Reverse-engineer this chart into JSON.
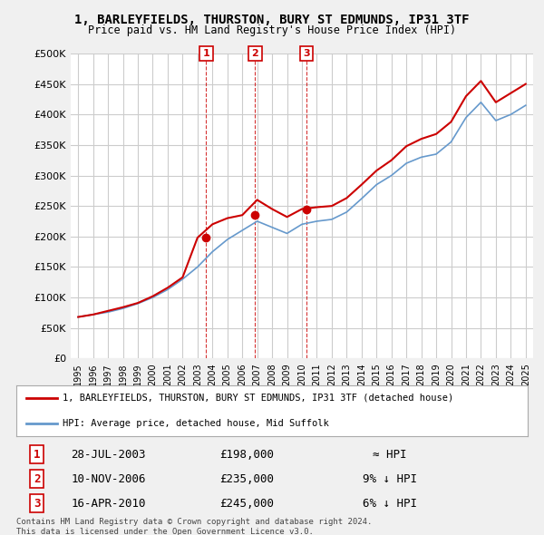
{
  "title": "1, BARLEYFIELDS, THURSTON, BURY ST EDMUNDS, IP31 3TF",
  "subtitle": "Price paid vs. HM Land Registry's House Price Index (HPI)",
  "ylabel": "",
  "ylim": [
    0,
    500000
  ],
  "yticks": [
    0,
    50000,
    100000,
    150000,
    200000,
    250000,
    300000,
    350000,
    400000,
    450000,
    500000
  ],
  "ytick_labels": [
    "£0",
    "£50K",
    "£100K",
    "£150K",
    "£200K",
    "£250K",
    "£300K",
    "£350K",
    "£400K",
    "£450K",
    "£500K"
  ],
  "bg_color": "#f0f0f0",
  "plot_bg_color": "#ffffff",
  "grid_color": "#cccccc",
  "red_line_color": "#cc0000",
  "blue_line_color": "#6699cc",
  "sale_marker_color": "#cc0000",
  "sale_marker_edge": "#cc0000",
  "purchase_dates": [
    "2003-07-28",
    "2006-11-10",
    "2010-04-16"
  ],
  "purchase_prices": [
    198000,
    235000,
    245000
  ],
  "purchase_labels": [
    "1",
    "2",
    "3"
  ],
  "legend_line1": "1, BARLEYFIELDS, THURSTON, BURY ST EDMUNDS, IP31 3TF (detached house)",
  "legend_line2": "HPI: Average price, detached house, Mid Suffolk",
  "table_data": [
    [
      "1",
      "28-JUL-2003",
      "£198,000",
      "≈ HPI"
    ],
    [
      "2",
      "10-NOV-2006",
      "£235,000",
      "9% ↓ HPI"
    ],
    [
      "3",
      "16-APR-2010",
      "£245,000",
      "6% ↓ HPI"
    ]
  ],
  "footnote": "Contains HM Land Registry data © Crown copyright and database right 2024.\nThis data is licensed under the Open Government Licence v3.0.",
  "hpi_years": [
    1995,
    1996,
    1997,
    1998,
    1999,
    2000,
    2001,
    2002,
    2003,
    2004,
    2005,
    2006,
    2007,
    2008,
    2009,
    2010,
    2011,
    2012,
    2013,
    2014,
    2015,
    2016,
    2017,
    2018,
    2019,
    2020,
    2021,
    2022,
    2023,
    2024,
    2025
  ],
  "hpi_values": [
    68000,
    72000,
    76000,
    82000,
    90000,
    100000,
    113000,
    130000,
    150000,
    175000,
    195000,
    210000,
    225000,
    215000,
    205000,
    220000,
    225000,
    228000,
    240000,
    262000,
    285000,
    300000,
    320000,
    330000,
    335000,
    355000,
    395000,
    420000,
    390000,
    400000,
    415000
  ],
  "red_years": [
    1995,
    1996,
    1997,
    1998,
    1999,
    2000,
    2001,
    2002,
    2003,
    2004,
    2005,
    2006,
    2007,
    2008,
    2009,
    2010,
    2011,
    2012,
    2013,
    2014,
    2015,
    2016,
    2017,
    2018,
    2019,
    2020,
    2021,
    2022,
    2023,
    2024,
    2025
  ],
  "red_values": [
    68000,
    72000,
    78000,
    84000,
    91000,
    102000,
    116000,
    133000,
    198000,
    220000,
    230000,
    235000,
    260000,
    245000,
    232000,
    245000,
    248000,
    250000,
    263000,
    285000,
    308000,
    325000,
    348000,
    360000,
    368000,
    388000,
    430000,
    455000,
    420000,
    435000,
    450000
  ]
}
